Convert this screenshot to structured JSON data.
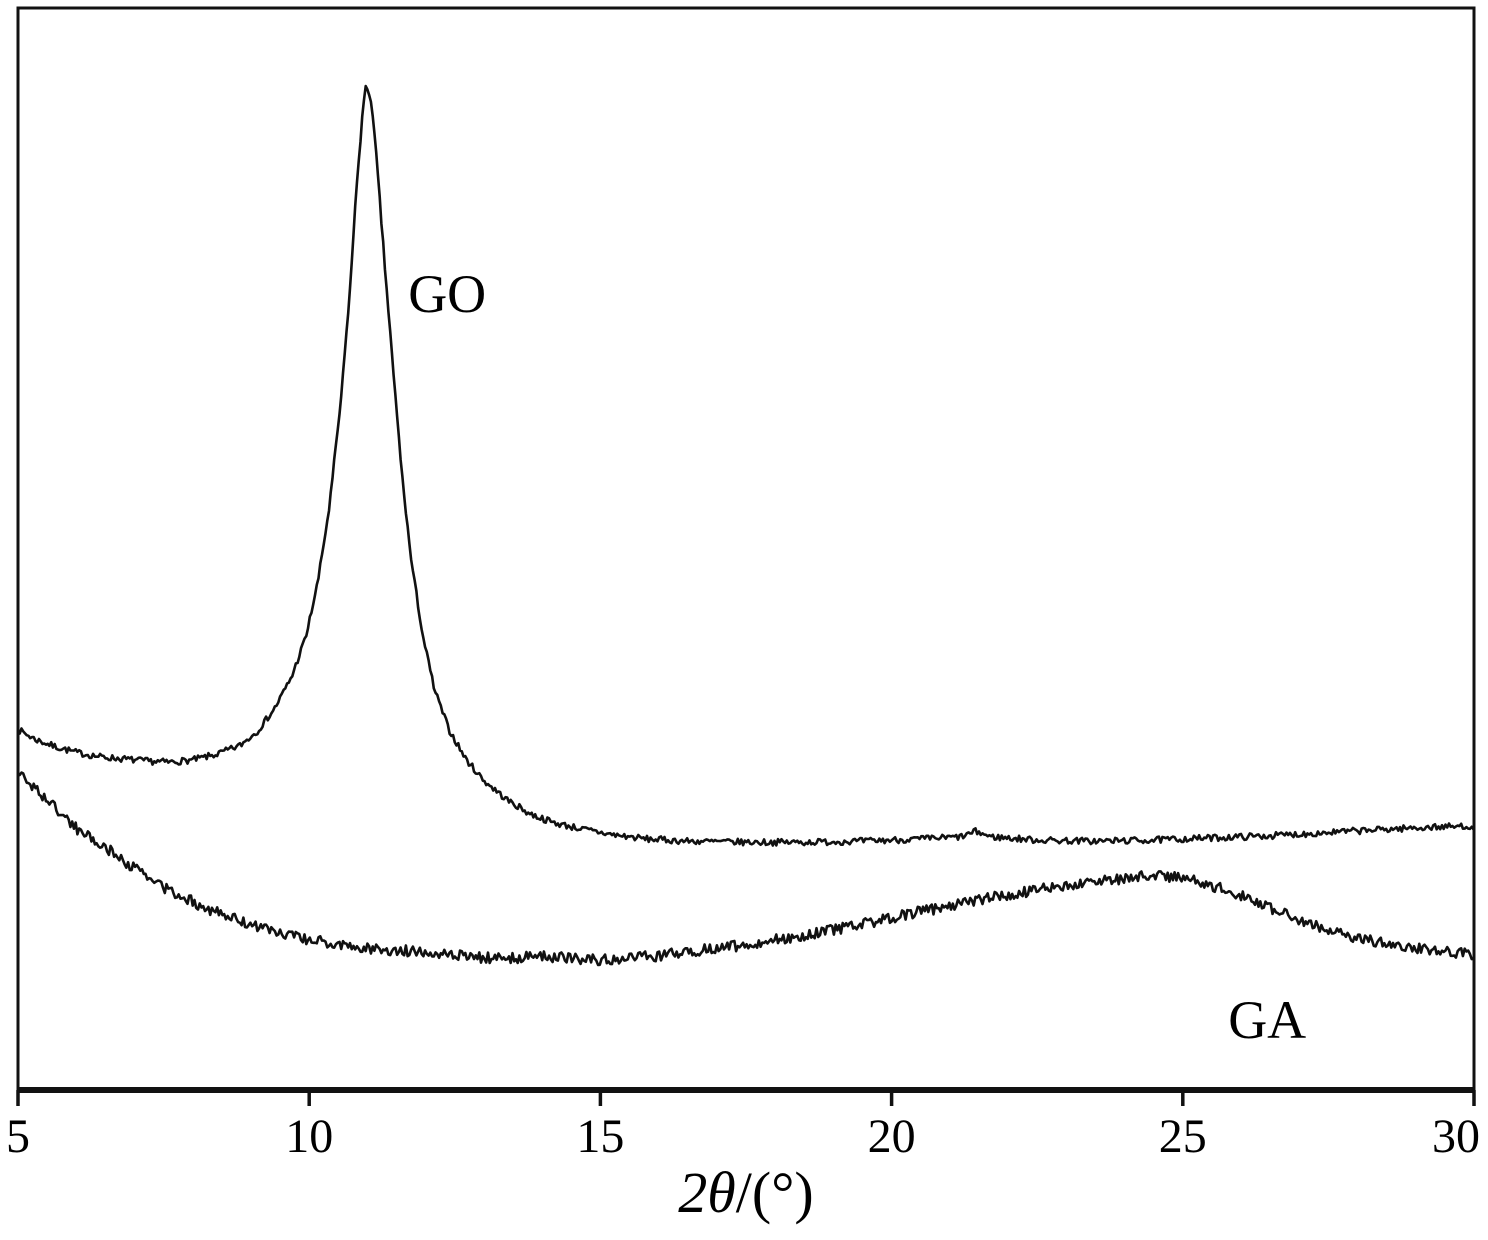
{
  "figure": {
    "kind": "XRD diffraction pattern, two stacked traces",
    "background_color": "#ffffff",
    "line_color": "#111111"
  },
  "chart_data": {
    "type": "line",
    "title": "",
    "xlabel_italic": "2θ",
    "xlabel_rest": "/(°)",
    "ylabel": "",
    "x_range": [
      5,
      30
    ],
    "x_ticks": [
      "5",
      "10",
      "15",
      "20",
      "25",
      "30"
    ],
    "ylim": [
      0,
      1
    ],
    "y_axis_scale_shown": false,
    "grid": false,
    "legend_position": "none",
    "series": [
      {
        "name": "GO",
        "peak_2theta": 11.0,
        "noise_amplitude": 0.003,
        "points": [
          [
            5.0,
            0.333
          ],
          [
            5.3,
            0.324
          ],
          [
            5.6,
            0.318
          ],
          [
            6.0,
            0.312
          ],
          [
            6.4,
            0.308
          ],
          [
            6.8,
            0.306
          ],
          [
            7.2,
            0.304
          ],
          [
            7.6,
            0.303
          ],
          [
            8.0,
            0.305
          ],
          [
            8.4,
            0.31
          ],
          [
            8.8,
            0.318
          ],
          [
            9.1,
            0.331
          ],
          [
            9.4,
            0.352
          ],
          [
            9.7,
            0.382
          ],
          [
            9.95,
            0.42
          ],
          [
            10.15,
            0.47
          ],
          [
            10.35,
            0.54
          ],
          [
            10.55,
            0.64
          ],
          [
            10.7,
            0.74
          ],
          [
            10.82,
            0.84
          ],
          [
            10.92,
            0.905
          ],
          [
            10.98,
            0.929
          ],
          [
            11.06,
            0.916
          ],
          [
            11.15,
            0.865
          ],
          [
            11.3,
            0.76
          ],
          [
            11.45,
            0.66
          ],
          [
            11.6,
            0.565
          ],
          [
            11.75,
            0.49
          ],
          [
            11.95,
            0.42
          ],
          [
            12.15,
            0.37
          ],
          [
            12.4,
            0.333
          ],
          [
            12.7,
            0.305
          ],
          [
            13.0,
            0.286
          ],
          [
            13.4,
            0.268
          ],
          [
            13.8,
            0.255
          ],
          [
            14.2,
            0.247
          ],
          [
            14.7,
            0.241
          ],
          [
            15.2,
            0.236
          ],
          [
            15.8,
            0.232
          ],
          [
            16.5,
            0.23
          ],
          [
            17.5,
            0.229
          ],
          [
            18.5,
            0.229
          ],
          [
            19.5,
            0.23
          ],
          [
            20.5,
            0.232
          ],
          [
            21.2,
            0.234
          ],
          [
            21.45,
            0.239
          ],
          [
            21.7,
            0.234
          ],
          [
            22.5,
            0.231
          ],
          [
            23.5,
            0.23
          ],
          [
            24.5,
            0.231
          ],
          [
            25.5,
            0.233
          ],
          [
            26.5,
            0.235
          ],
          [
            27.5,
            0.238
          ],
          [
            28.5,
            0.241
          ],
          [
            29.3,
            0.243
          ],
          [
            30.0,
            0.244
          ]
        ]
      },
      {
        "name": "GA",
        "hump_2theta": 24.5,
        "noise_amplitude": 0.005,
        "points": [
          [
            5.0,
            0.294
          ],
          [
            5.5,
            0.268
          ],
          [
            6.0,
            0.242
          ],
          [
            6.5,
            0.224
          ],
          [
            7.0,
            0.205
          ],
          [
            7.5,
            0.187
          ],
          [
            8.0,
            0.174
          ],
          [
            8.5,
            0.162
          ],
          [
            9.0,
            0.153
          ],
          [
            9.5,
            0.145
          ],
          [
            10.0,
            0.139
          ],
          [
            10.5,
            0.134
          ],
          [
            11.0,
            0.131
          ],
          [
            11.5,
            0.129
          ],
          [
            12.0,
            0.128
          ],
          [
            12.5,
            0.125
          ],
          [
            13.0,
            0.122
          ],
          [
            13.5,
            0.122
          ],
          [
            14.0,
            0.124
          ],
          [
            14.5,
            0.122
          ],
          [
            15.0,
            0.12
          ],
          [
            15.5,
            0.122
          ],
          [
            16.0,
            0.124
          ],
          [
            16.5,
            0.128
          ],
          [
            17.0,
            0.131
          ],
          [
            17.5,
            0.134
          ],
          [
            18.0,
            0.139
          ],
          [
            18.5,
            0.143
          ],
          [
            19.0,
            0.148
          ],
          [
            19.5,
            0.153
          ],
          [
            20.0,
            0.159
          ],
          [
            20.5,
            0.165
          ],
          [
            21.0,
            0.17
          ],
          [
            21.5,
            0.176
          ],
          [
            22.0,
            0.18
          ],
          [
            22.5,
            0.185
          ],
          [
            23.0,
            0.189
          ],
          [
            23.5,
            0.192
          ],
          [
            24.0,
            0.196
          ],
          [
            24.5,
            0.199
          ],
          [
            25.0,
            0.196
          ],
          [
            25.5,
            0.189
          ],
          [
            26.0,
            0.18
          ],
          [
            26.5,
            0.168
          ],
          [
            27.0,
            0.157
          ],
          [
            27.5,
            0.148
          ],
          [
            28.0,
            0.14
          ],
          [
            28.5,
            0.135
          ],
          [
            29.0,
            0.131
          ],
          [
            29.5,
            0.128
          ],
          [
            30.0,
            0.125
          ]
        ]
      }
    ],
    "annotations": [
      {
        "text": "GO",
        "x": 11.7,
        "v": 0.719,
        "anchor": "start"
      },
      {
        "text": "GA",
        "x": 25.78,
        "v": 0.048,
        "anchor": "start"
      }
    ]
  }
}
